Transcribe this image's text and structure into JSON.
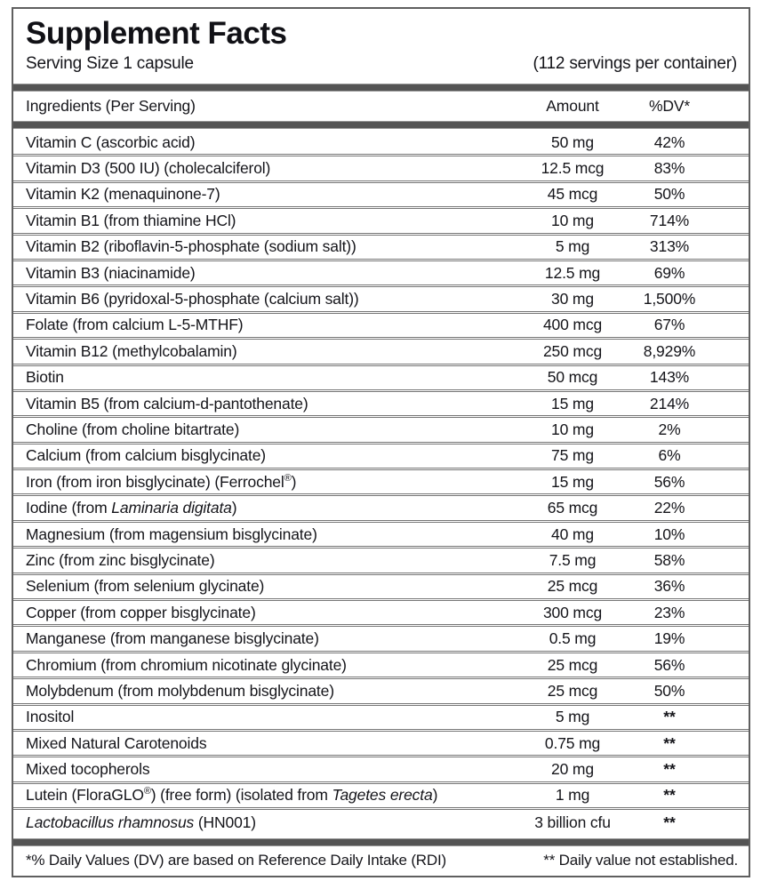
{
  "label": {
    "title": "Supplement Facts",
    "serving_size": "Serving Size 1 capsule",
    "servings_per_container": "(112 servings per container)",
    "columns": {
      "ingredient": "Ingredients (Per Serving)",
      "amount": "Amount",
      "dv": "%DV*"
    },
    "rows": [
      {
        "name": [
          {
            "t": "Vitamin C (ascorbic acid)",
            "i": false
          }
        ],
        "amount": "50 mg",
        "dv": "42%"
      },
      {
        "name": [
          {
            "t": "Vitamin D3 (500 IU) (cholecalciferol)",
            "i": false
          }
        ],
        "amount": "12.5 mcg",
        "dv": "83%"
      },
      {
        "name": [
          {
            "t": "Vitamin K2 (menaquinone-7)",
            "i": false
          }
        ],
        "amount": "45 mcg",
        "dv": "50%"
      },
      {
        "name": [
          {
            "t": "Vitamin B1 (from thiamine HCl)",
            "i": false
          }
        ],
        "amount": "10 mg",
        "dv": "714%"
      },
      {
        "name": [
          {
            "t": "Vitamin B2 (riboflavin-5-phosphate (sodium salt))",
            "i": false
          }
        ],
        "amount": "5 mg",
        "dv": "313%"
      },
      {
        "name": [
          {
            "t": "Vitamin B3 (niacinamide)",
            "i": false
          }
        ],
        "amount": "12.5 mg",
        "dv": "69%"
      },
      {
        "name": [
          {
            "t": "Vitamin B6 (pyridoxal-5-phosphate (calcium salt))",
            "i": false
          }
        ],
        "amount": "30 mg",
        "dv": "1,500%"
      },
      {
        "name": [
          {
            "t": "Folate (from calcium L-5-MTHF)",
            "i": false
          }
        ],
        "amount": "400 mcg",
        "dv": "67%"
      },
      {
        "name": [
          {
            "t": "Vitamin B12 (methylcobalamin)",
            "i": false
          }
        ],
        "amount": "250 mcg",
        "dv": "8,929%"
      },
      {
        "name": [
          {
            "t": "Biotin",
            "i": false
          }
        ],
        "amount": "50 mcg",
        "dv": "143%"
      },
      {
        "name": [
          {
            "t": "Vitamin B5 (from calcium-d-pantothenate)",
            "i": false
          }
        ],
        "amount": "15 mg",
        "dv": "214%"
      },
      {
        "name": [
          {
            "t": "Choline (from choline bitartrate)",
            "i": false
          }
        ],
        "amount": "10 mg",
        "dv": "2%"
      },
      {
        "name": [
          {
            "t": "Calcium (from calcium bisglycinate)",
            "i": false
          }
        ],
        "amount": "75 mg",
        "dv": "6%"
      },
      {
        "name": [
          {
            "t": "Iron (from iron bisglycinate) (Ferrochel®)",
            "i": false
          }
        ],
        "amount": "15 mg",
        "dv": "56%"
      },
      {
        "name": [
          {
            "t": "Iodine (from ",
            "i": false
          },
          {
            "t": "Laminaria digitata",
            "i": true
          },
          {
            "t": ")",
            "i": false
          }
        ],
        "amount": "65 mcg",
        "dv": "22%"
      },
      {
        "name": [
          {
            "t": "Magnesium (from magensium bisglycinate)",
            "i": false
          }
        ],
        "amount": "40 mg",
        "dv": "10%"
      },
      {
        "name": [
          {
            "t": "Zinc (from zinc bisglycinate)",
            "i": false
          }
        ],
        "amount": "7.5 mg",
        "dv": "58%"
      },
      {
        "name": [
          {
            "t": "Selenium (from selenium glycinate)",
            "i": false
          }
        ],
        "amount": "25 mcg",
        "dv": "36%"
      },
      {
        "name": [
          {
            "t": "Copper (from copper bisglycinate)",
            "i": false
          }
        ],
        "amount": "300 mcg",
        "dv": "23%"
      },
      {
        "name": [
          {
            "t": "Manganese (from manganese bisglycinate)",
            "i": false
          }
        ],
        "amount": "0.5 mg",
        "dv": "19%"
      },
      {
        "name": [
          {
            "t": "Chromium (from chromium nicotinate glycinate)",
            "i": false
          }
        ],
        "amount": "25 mcg",
        "dv": "56%"
      },
      {
        "name": [
          {
            "t": "Molybdenum (from molybdenum bisglycinate)",
            "i": false
          }
        ],
        "amount": "25 mcg",
        "dv": "50%"
      },
      {
        "name": [
          {
            "t": "Inositol",
            "i": false
          }
        ],
        "amount": "5 mg",
        "dv": "**"
      },
      {
        "name": [
          {
            "t": "Mixed Natural Carotenoids",
            "i": false
          }
        ],
        "amount": "0.75 mg",
        "dv": "**"
      },
      {
        "name": [
          {
            "t": "Mixed tocopherols",
            "i": false
          }
        ],
        "amount": "20 mg",
        "dv": "**"
      },
      {
        "name": [
          {
            "t": "Lutein (FloraGLO®) (free form) (isolated from ",
            "i": false
          },
          {
            "t": "Tagetes erecta",
            "i": true
          },
          {
            "t": ")",
            "i": false
          }
        ],
        "amount": "1 mg",
        "dv": "**"
      },
      {
        "name": [
          {
            "t": "Lactobacillus rhamnosus",
            "i": true
          },
          {
            "t": " (HN001)",
            "i": false
          }
        ],
        "amount": "3 billion cfu",
        "dv": "**"
      }
    ],
    "footnotes": {
      "dv_note": "*% Daily Values (DV) are based on Reference Daily Intake (RDI)",
      "not_established_note": "** Daily value not established."
    },
    "colors": {
      "bar": "#545454",
      "border": "#5f5f5f",
      "row_divider": "#767676",
      "text": "#15151a"
    }
  }
}
